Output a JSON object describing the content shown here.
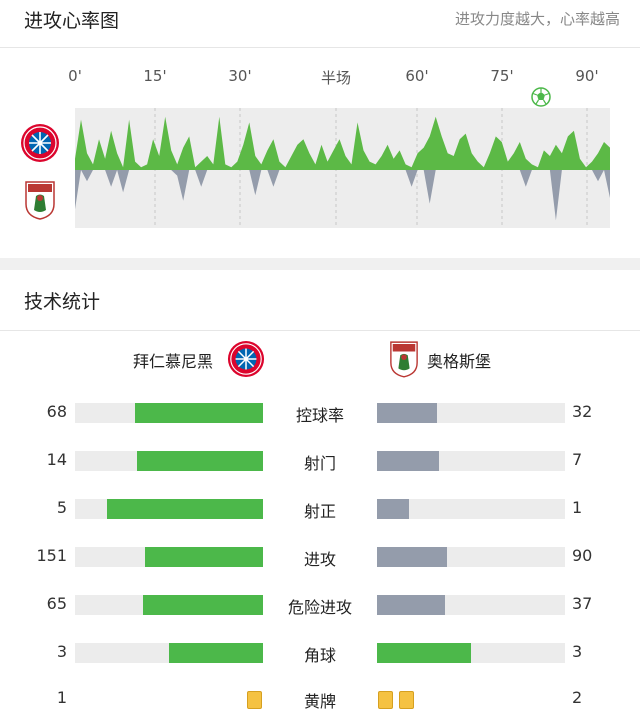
{
  "header": {
    "title": "进攻心率图",
    "hint": "进攻力度越大，心率越高"
  },
  "timeline": {
    "ticks": [
      "0'",
      "15'",
      "30'",
      "半场",
      "60'",
      "75'",
      "90'"
    ]
  },
  "momentum": {
    "home_color": "#5cb946",
    "away_color": "#949cab",
    "goal_icon": "soccer-ball-icon",
    "home": [
      0.2,
      0.9,
      0.3,
      0.1,
      0.55,
      0.2,
      0.7,
      0.3,
      0.05,
      0.9,
      0.15,
      0.05,
      0.1,
      0.55,
      0.25,
      0.95,
      0.35,
      0.1,
      0.4,
      0.6,
      0.05,
      0.15,
      0.25,
      0.1,
      0.95,
      0.1,
      0.05,
      0.15,
      0.45,
      0.85,
      0.25,
      0.1,
      0.35,
      0.55,
      0.15,
      0.05,
      0.25,
      0.45,
      0.55,
      0.3,
      0.1,
      0.45,
      0.15,
      0.35,
      0.55,
      0.25,
      0.1,
      0.85,
      0.35,
      0.15,
      0.1,
      0.25,
      0.45,
      0.2,
      0.35,
      0.1,
      0.05,
      0.3,
      0.4,
      0.6,
      0.95,
      0.6,
      0.3,
      0.25,
      0.55,
      0.65,
      0.3,
      0.15,
      0.05,
      0.3,
      0.6,
      0.5,
      0.15,
      0.3,
      0.5,
      0.2,
      0.1,
      0.05,
      0.35,
      0.25,
      0.45,
      0.3,
      0.6,
      0.7,
      0.2,
      0.05,
      0.15,
      0.3,
      0.5,
      0.4
    ],
    "away": [
      0.7,
      0,
      0.2,
      0,
      0,
      0,
      0.3,
      0,
      0.4,
      0,
      0,
      0,
      0,
      0,
      0,
      0,
      0,
      0.1,
      0.55,
      0,
      0,
      0.3,
      0,
      0,
      0,
      0,
      0,
      0,
      0,
      0,
      0.45,
      0,
      0,
      0.3,
      0,
      0,
      0,
      0,
      0,
      0,
      0,
      0,
      0,
      0,
      0,
      0,
      0,
      0,
      0,
      0,
      0,
      0,
      0,
      0,
      0,
      0,
      0.3,
      0,
      0,
      0.6,
      0,
      0,
      0,
      0,
      0,
      0,
      0,
      0,
      0,
      0,
      0,
      0,
      0,
      0,
      0,
      0.3,
      0,
      0,
      0,
      0,
      0.9,
      0,
      0,
      0,
      0,
      0,
      0,
      0.2,
      0,
      0.5
    ]
  },
  "stats": {
    "title": "技术统计",
    "home_name": "拜仁慕尼黑",
    "away_name": "奥格斯堡",
    "home_color": "#4cb84a",
    "away_color": "#949cab",
    "rows": [
      {
        "label": "控球率",
        "home": "68",
        "away": "32",
        "home_pct": 0.68,
        "away_pct": 0.32
      },
      {
        "label": "射门",
        "home": "14",
        "away": "7",
        "home_pct": 0.67,
        "away_pct": 0.33
      },
      {
        "label": "射正",
        "home": "5",
        "away": "1",
        "home_pct": 0.83,
        "away_pct": 0.17
      },
      {
        "label": "进攻",
        "home": "151",
        "away": "90",
        "home_pct": 0.63,
        "away_pct": 0.37
      },
      {
        "label": "危险进攻",
        "home": "65",
        "away": "37",
        "home_pct": 0.64,
        "away_pct": 0.36
      },
      {
        "label": "角球",
        "home": "3",
        "away": "3",
        "home_pct": 0.5,
        "away_pct": 0.5
      }
    ],
    "yellow": {
      "label": "黄牌",
      "home": "1",
      "away": "2",
      "home_cards": 1,
      "away_cards": 2
    }
  }
}
